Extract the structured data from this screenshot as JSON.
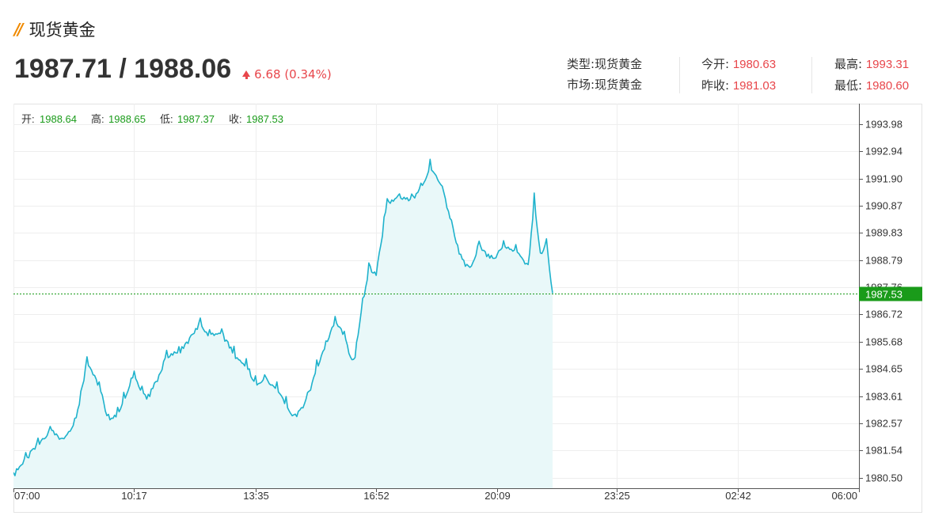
{
  "header": {
    "title": "现货黄金"
  },
  "quote": {
    "price": "1987.71 / 1988.06",
    "change": "6.68 (0.34%)"
  },
  "info": {
    "type_label": "类型:",
    "type_value": "现货黄金",
    "market_label": "市场:",
    "market_value": "现货黄金",
    "open_label": "今开:",
    "open_value": "1980.63",
    "prev_close_label": "昨收:",
    "prev_close_value": "1981.03",
    "high_label": "最高:",
    "high_value": "1993.31",
    "low_label": "最低:",
    "low_value": "1980.60"
  },
  "ohlc": {
    "open_label": "开:",
    "open_value": "1988.64",
    "high_label": "高:",
    "high_value": "1988.65",
    "low_label": "低:",
    "low_value": "1987.37",
    "close_label": "收:",
    "close_value": "1987.53"
  },
  "colors": {
    "line": "#1fb2cc",
    "fill": "#e9f8f9",
    "up": "#e8464b",
    "ohlc": "#1a9b1a",
    "current": "#1a9b1a"
  },
  "chart_data": {
    "type": "area",
    "title": "",
    "xlabel": "",
    "ylabel": "",
    "x_ticks": [
      "07:00",
      "10:17",
      "13:35",
      "16:52",
      "20:09",
      "23:25",
      "02:42",
      "06:00"
    ],
    "y_ticks": [
      "1993.98",
      "1992.94",
      "1991.90",
      "1990.87",
      "1989.83",
      "1988.79",
      "1987.76",
      "1986.72",
      "1985.68",
      "1984.65",
      "1983.61",
      "1982.57",
      "1981.54",
      "1980.50"
    ],
    "ylim": [
      1980.1,
      1994.75
    ],
    "xlim": [
      "07:00",
      "06:00"
    ],
    "current_value": "1987.53",
    "grid": true,
    "series": [
      {
        "x": [
          "07:00",
          "07:20",
          "07:40",
          "08:00",
          "08:20",
          "08:40",
          "09:00",
          "09:20",
          "09:35",
          "09:50",
          "10:00",
          "10:17",
          "10:35",
          "10:50",
          "11:10",
          "11:30",
          "11:50",
          "12:05",
          "12:20",
          "12:40",
          "13:00",
          "13:20",
          "13:35",
          "13:50",
          "14:10",
          "14:25",
          "14:40",
          "15:00",
          "15:15",
          "15:30",
          "15:45",
          "16:00",
          "16:15",
          "16:30",
          "16:40",
          "16:52",
          "17:10",
          "17:30",
          "17:50",
          "18:05",
          "18:20",
          "18:40",
          "18:55",
          "19:10",
          "19:25",
          "19:40",
          "20:00",
          "20:20",
          "20:40",
          "21:00",
          "21:10",
          "21:20",
          "21:30",
          "21:40"
        ],
        "values": [
          1980.7,
          1981.3,
          1981.9,
          1982.4,
          1982.0,
          1982.6,
          1985.0,
          1984.1,
          1982.8,
          1983.0,
          1983.6,
          1984.6,
          1983.5,
          1984.1,
          1985.2,
          1985.4,
          1985.9,
          1986.5,
          1986.0,
          1986.1,
          1985.3,
          1984.9,
          1984.2,
          1984.4,
          1984.0,
          1983.4,
          1982.9,
          1983.6,
          1984.8,
          1985.7,
          1986.6,
          1986.0,
          1984.9,
          1987.2,
          1988.6,
          1988.4,
          1991.0,
          1991.3,
          1991.2,
          1991.6,
          1992.5,
          1991.6,
          1990.3,
          1989.0,
          1988.5,
          1989.5,
          1988.9,
          1989.4,
          1989.2,
          1988.6,
          1991.2,
          1989.0,
          1989.6,
          1987.53
        ]
      }
    ]
  }
}
